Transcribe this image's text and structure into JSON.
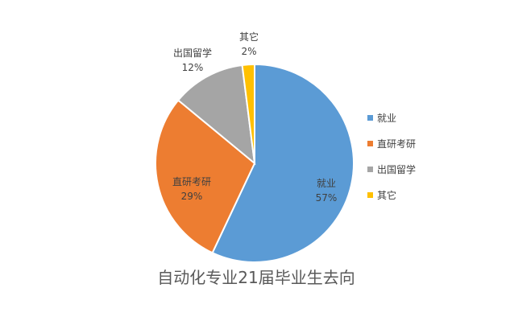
{
  "chart_data": {
    "type": "pie",
    "title": "自动化专业21届毕业生去向",
    "categories": [
      "就业",
      "直研考研",
      "出国留学",
      "其它"
    ],
    "values": [
      57,
      29,
      12,
      2
    ],
    "percent_labels": [
      "57%",
      "29%",
      "12%",
      "2%"
    ],
    "colors": [
      "#5B9BD5",
      "#ED7D31",
      "#A5A5A5",
      "#FFC000"
    ],
    "legend_position": "right",
    "data_labels": "category name and percentage"
  }
}
